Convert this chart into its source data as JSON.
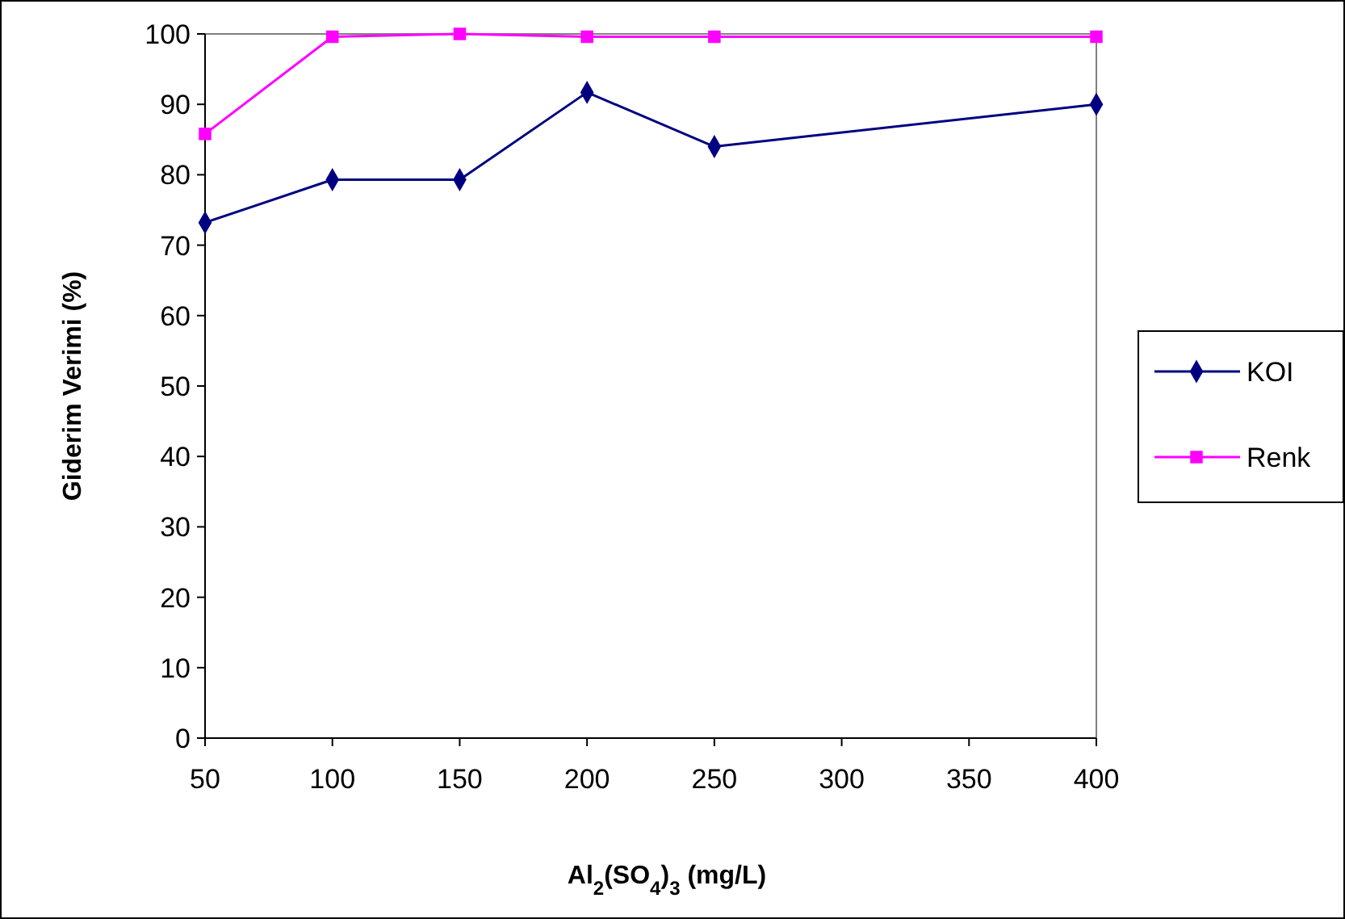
{
  "chart_data": {
    "type": "line",
    "xlabel": "Al$_{2}$(SO$_{4}$)$_{3}$ (mg/L)",
    "ylabel": "Giderim Verimi (%)",
    "x": [
      50,
      100,
      150,
      200,
      250,
      400
    ],
    "series": [
      {
        "name": "KOI",
        "color": "#000080",
        "marker": "diamond",
        "values": [
          73.2,
          79.3,
          79.3,
          91.7,
          84,
          90
        ]
      },
      {
        "name": "Renk",
        "color": "#ff00ff",
        "marker": "square",
        "values": [
          85.8,
          99.6,
          100,
          99.6,
          99.6,
          99.6
        ]
      }
    ],
    "xlim": [
      50,
      400
    ],
    "xticks": [
      50,
      100,
      150,
      200,
      250,
      300,
      350,
      400
    ],
    "ylim": [
      0,
      100
    ],
    "yticks": [
      0,
      10,
      20,
      30,
      40,
      50,
      60,
      70,
      80,
      90,
      100
    ],
    "grid": false,
    "legend": "right",
    "line_style": "solid"
  }
}
